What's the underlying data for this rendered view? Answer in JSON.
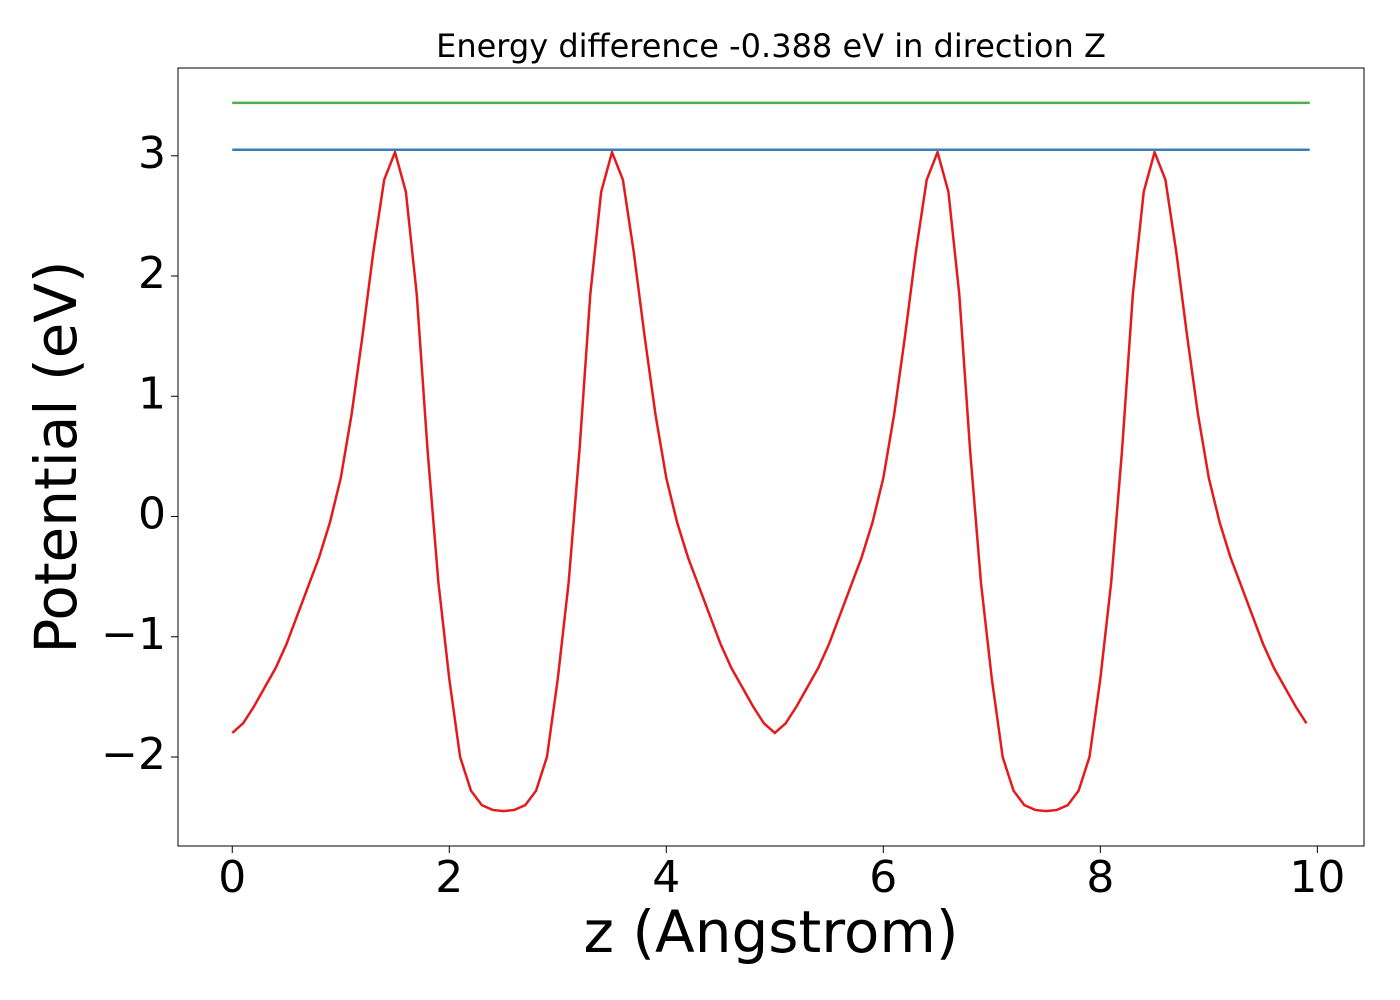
{
  "chart_data": {
    "type": "line",
    "title": "Energy difference -0.388 eV in direction Z",
    "xlabel": "z (Angstrom)",
    "ylabel": "Potential (eV)",
    "xlim": [
      -0.5,
      10.43
    ],
    "ylim": [
      -2.74,
      3.73
    ],
    "xticks": [
      0,
      2,
      4,
      6,
      8,
      10
    ],
    "yticks": [
      {
        "value": -2,
        "label": "−2"
      },
      {
        "value": -1,
        "label": "−1"
      },
      0,
      1,
      2,
      3
    ],
    "series": [
      {
        "color": "#e41a1c",
        "x": [
          0,
          0.1,
          0.2,
          0.3,
          0.4,
          0.5,
          0.6,
          0.7,
          0.8,
          0.9,
          1.0,
          1.1,
          1.2,
          1.3,
          1.4,
          1.5,
          1.6,
          1.7,
          1.8,
          1.9,
          2.0,
          2.1,
          2.2,
          2.3,
          2.4,
          2.5,
          2.6,
          2.7,
          2.8,
          2.9,
          3.0,
          3.1,
          3.2,
          3.3,
          3.4,
          3.5,
          3.6,
          3.7,
          3.8,
          3.9,
          4.0,
          4.1,
          4.2,
          4.3,
          4.4,
          4.5,
          4.6,
          4.7,
          4.8,
          4.9,
          5.0,
          5.1,
          5.2,
          5.3,
          5.4,
          5.5,
          5.6,
          5.7,
          5.8,
          5.9,
          6.0,
          6.1,
          6.2,
          6.3,
          6.4,
          6.5,
          6.6,
          6.7,
          6.8,
          6.9,
          7.0,
          7.1,
          7.2,
          7.3,
          7.4,
          7.5,
          7.6,
          7.7,
          7.8,
          7.9,
          8.0,
          8.1,
          8.2,
          8.3,
          8.4,
          8.5,
          8.6,
          8.7,
          8.8,
          8.9,
          9.0,
          9.1,
          9.2,
          9.3,
          9.4,
          9.5,
          9.6,
          9.7,
          9.8,
          9.9
        ],
        "values": [
          -1.8,
          -1.72,
          -1.58,
          -1.42,
          -1.26,
          -1.06,
          -0.82,
          -0.58,
          -0.34,
          -0.05,
          0.32,
          0.85,
          1.5,
          2.2,
          2.8,
          3.03,
          2.7,
          1.85,
          0.55,
          -0.55,
          -1.35,
          -2.0,
          -2.28,
          -2.4,
          -2.44,
          -2.45,
          -2.44,
          -2.4,
          -2.28,
          -2.0,
          -1.35,
          -0.55,
          0.55,
          1.85,
          2.7,
          3.03,
          2.8,
          2.2,
          1.5,
          0.85,
          0.32,
          -0.05,
          -0.34,
          -0.58,
          -0.82,
          -1.06,
          -1.26,
          -1.42,
          -1.58,
          -1.72,
          -1.8,
          -1.72,
          -1.58,
          -1.42,
          -1.26,
          -1.06,
          -0.82,
          -0.58,
          -0.34,
          -0.05,
          0.32,
          0.85,
          1.5,
          2.2,
          2.8,
          3.03,
          2.7,
          1.85,
          0.55,
          -0.55,
          -1.35,
          -2.0,
          -2.28,
          -2.4,
          -2.44,
          -2.45,
          -2.44,
          -2.4,
          -2.28,
          -2.0,
          -1.35,
          -0.55,
          0.55,
          1.85,
          2.7,
          3.03,
          2.8,
          2.2,
          1.5,
          0.85,
          0.32,
          -0.05,
          -0.34,
          -0.58,
          -0.82,
          -1.06,
          -1.26,
          -1.42,
          -1.58,
          -1.72
        ]
      },
      {
        "color": "#377eb8",
        "x": [
          0,
          9.93
        ],
        "values": [
          3.05,
          3.05
        ]
      },
      {
        "color": "#4daf4a",
        "x": [
          0,
          9.93
        ],
        "values": [
          3.44,
          3.44
        ]
      }
    ]
  }
}
